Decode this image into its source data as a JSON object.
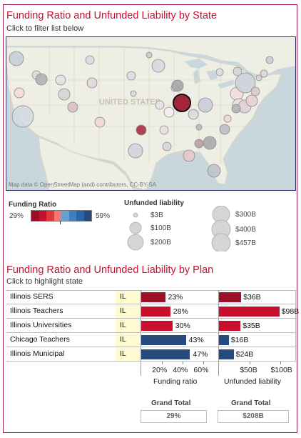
{
  "map_section": {
    "title": "Funding Ratio and Unfunded Liability by State",
    "subtitle": "Click to filter list below",
    "country_label": "UNITED STATES",
    "credit": "Map data © OpenStreetMap (and) contributors, CC-BY-SA"
  },
  "legend": {
    "funding_title": "Funding Ratio",
    "funding_min": "29%",
    "funding_max": "59%",
    "funding_colors": [
      "#9b1028",
      "#c8102e",
      "#e0393b",
      "#f07a72",
      "#6aa0cf",
      "#3f7fbf",
      "#2f64a3",
      "#274a7c"
    ],
    "liability_title": "Unfunded liability",
    "liability_items": [
      "$3B",
      "$100B",
      "$200B",
      "$300B",
      "$400B",
      "$457B"
    ]
  },
  "plan_section": {
    "title": "Funding Ratio and Unfunded Liability by Plan",
    "subtitle": "Click to highlight state"
  },
  "chart_data": {
    "type": "bar",
    "categories": [
      "Illinois SERS",
      "Illinois Teachers",
      "Illinois Universities",
      "Chicago Teachers",
      "Illinois Municipal"
    ],
    "states": [
      "IL",
      "IL",
      "IL",
      "IL",
      "IL"
    ],
    "series": [
      {
        "name": "Funding ratio",
        "values": [
          23,
          28,
          30,
          43,
          47
        ],
        "labels": [
          "23%",
          "28%",
          "30%",
          "43%",
          "47%"
        ],
        "colors": [
          "#9b1028",
          "#c8102e",
          "#c8102e",
          "#274a7c",
          "#274a7c"
        ],
        "ticks": [
          "20%",
          "40%",
          "60%"
        ],
        "tick_values": [
          20,
          40,
          60
        ],
        "xlim": [
          0,
          70
        ]
      },
      {
        "name": "Unfunded liability",
        "values": [
          36,
          98,
          35,
          16,
          24
        ],
        "labels": [
          "$36B",
          "$98B",
          "$35B",
          "$16B",
          "$24B"
        ],
        "colors": [
          "#9b1028",
          "#c8102e",
          "#c8102e",
          "#274a7c",
          "#274a7c"
        ],
        "ticks": [
          "$50B",
          "$100B"
        ],
        "tick_values": [
          50,
          100
        ],
        "xlim": [
          0,
          118
        ]
      }
    ],
    "axis_titles": [
      "Funding ratio",
      "Unfunded liability"
    ]
  },
  "grand_total": {
    "funding_title": "Grand Total",
    "funding_value": "29%",
    "liability_title": "Grand Total",
    "liability_value": "$208B"
  }
}
